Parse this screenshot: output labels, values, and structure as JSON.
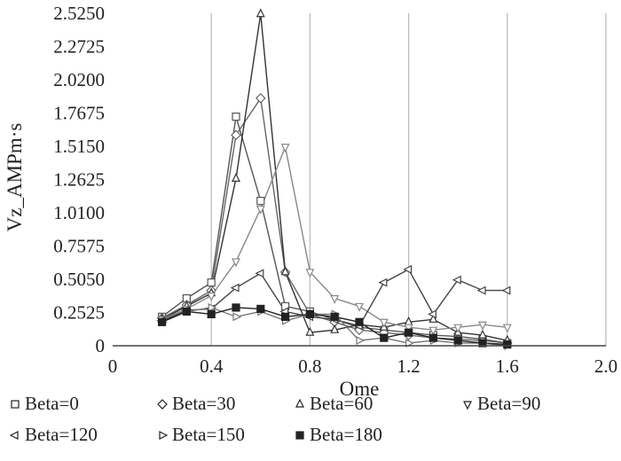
{
  "chart_data": {
    "type": "line",
    "title": "",
    "xlabel": "Ome",
    "ylabel": "Vz_AMPm·s",
    "xlim": [
      0,
      2.0
    ],
    "ylim": [
      0,
      2.525
    ],
    "x_ticks": [
      "0",
      "0.4",
      "0.8",
      "1.2",
      "1.6",
      "2.0"
    ],
    "x_tick_values": [
      0,
      0.4,
      0.8,
      1.2,
      1.6,
      2.0
    ],
    "y_ticks": [
      "0",
      "0.2525",
      "0.5050",
      "0.7575",
      "1.0100",
      "1.2625",
      "1.5150",
      "1.7675",
      "2.0200",
      "2.2725",
      "2.5250"
    ],
    "y_tick_values": [
      0,
      0.2525,
      0.505,
      0.7575,
      1.01,
      1.2625,
      1.515,
      1.7675,
      2.02,
      2.2725,
      2.525
    ],
    "grid": "vertical",
    "legend_position": "bottom",
    "series": [
      {
        "name": "Beta=0",
        "marker": "square-open",
        "color": "#555555",
        "x": [
          0.2,
          0.3,
          0.4,
          0.5,
          0.6,
          0.7,
          0.8,
          0.9,
          1.0,
          1.1,
          1.2,
          1.3,
          1.4,
          1.5,
          1.6
        ],
        "y": [
          0.22,
          0.36,
          0.48,
          1.74,
          1.1,
          0.3,
          0.26,
          0.2,
          0.14,
          0.12,
          0.1,
          0.08,
          0.07,
          0.05,
          0.02
        ]
      },
      {
        "name": "Beta=30",
        "marker": "diamond-open",
        "color": "#666666",
        "x": [
          0.2,
          0.3,
          0.4,
          0.5,
          0.6,
          0.7,
          0.8,
          0.9,
          1.0,
          1.1,
          1.2,
          1.3,
          1.4,
          1.5,
          1.6
        ],
        "y": [
          0.21,
          0.31,
          0.42,
          1.6,
          1.88,
          0.56,
          0.24,
          0.18,
          0.12,
          0.1,
          0.08,
          0.06,
          0.05,
          0.04,
          0.02
        ]
      },
      {
        "name": "Beta=60",
        "marker": "triangle-up-open",
        "color": "#333333",
        "x": [
          0.2,
          0.3,
          0.4,
          0.5,
          0.6,
          0.7,
          0.8,
          0.9,
          1.0,
          1.1,
          1.2,
          1.3,
          1.4,
          1.5,
          1.6
        ],
        "y": [
          0.2,
          0.3,
          0.4,
          1.27,
          2.52,
          0.56,
          0.1,
          0.12,
          0.16,
          0.14,
          0.18,
          0.2,
          0.1,
          0.08,
          0.04
        ]
      },
      {
        "name": "Beta=90",
        "marker": "triangle-down-open",
        "color": "#888888",
        "x": [
          0.2,
          0.3,
          0.4,
          0.5,
          0.6,
          0.7,
          0.8,
          0.9,
          1.0,
          1.1,
          1.2,
          1.3,
          1.4,
          1.5,
          1.6
        ],
        "y": [
          0.2,
          0.28,
          0.38,
          0.64,
          1.04,
          1.51,
          0.56,
          0.36,
          0.3,
          0.18,
          0.14,
          0.12,
          0.14,
          0.16,
          0.14
        ]
      },
      {
        "name": "Beta=120",
        "marker": "triangle-left-open",
        "color": "#444444",
        "x": [
          0.2,
          0.3,
          0.4,
          0.5,
          0.6,
          0.7,
          0.8,
          0.9,
          1.0,
          1.1,
          1.2,
          1.3,
          1.4,
          1.5,
          1.6
        ],
        "y": [
          0.19,
          0.27,
          0.28,
          0.44,
          0.55,
          0.26,
          0.22,
          0.2,
          0.15,
          0.48,
          0.58,
          0.24,
          0.5,
          0.42,
          0.42
        ]
      },
      {
        "name": "Beta=150",
        "marker": "triangle-right-open",
        "color": "#777777",
        "x": [
          0.2,
          0.3,
          0.4,
          0.5,
          0.6,
          0.7,
          0.8,
          0.9,
          1.0,
          1.1,
          1.2,
          1.3,
          1.4,
          1.5,
          1.6
        ],
        "y": [
          0.18,
          0.26,
          0.29,
          0.22,
          0.26,
          0.19,
          0.24,
          0.24,
          0.04,
          0.06,
          0.02,
          0.04,
          0.02,
          0.02,
          0.0
        ]
      },
      {
        "name": "Beta=180",
        "marker": "square-filled",
        "color": "#222222",
        "x": [
          0.2,
          0.3,
          0.4,
          0.5,
          0.6,
          0.7,
          0.8,
          0.9,
          1.0,
          1.1,
          1.2,
          1.3,
          1.4,
          1.5,
          1.6
        ],
        "y": [
          0.18,
          0.26,
          0.24,
          0.29,
          0.28,
          0.22,
          0.24,
          0.22,
          0.18,
          0.06,
          0.1,
          0.06,
          0.04,
          0.02,
          0.01
        ]
      }
    ]
  }
}
